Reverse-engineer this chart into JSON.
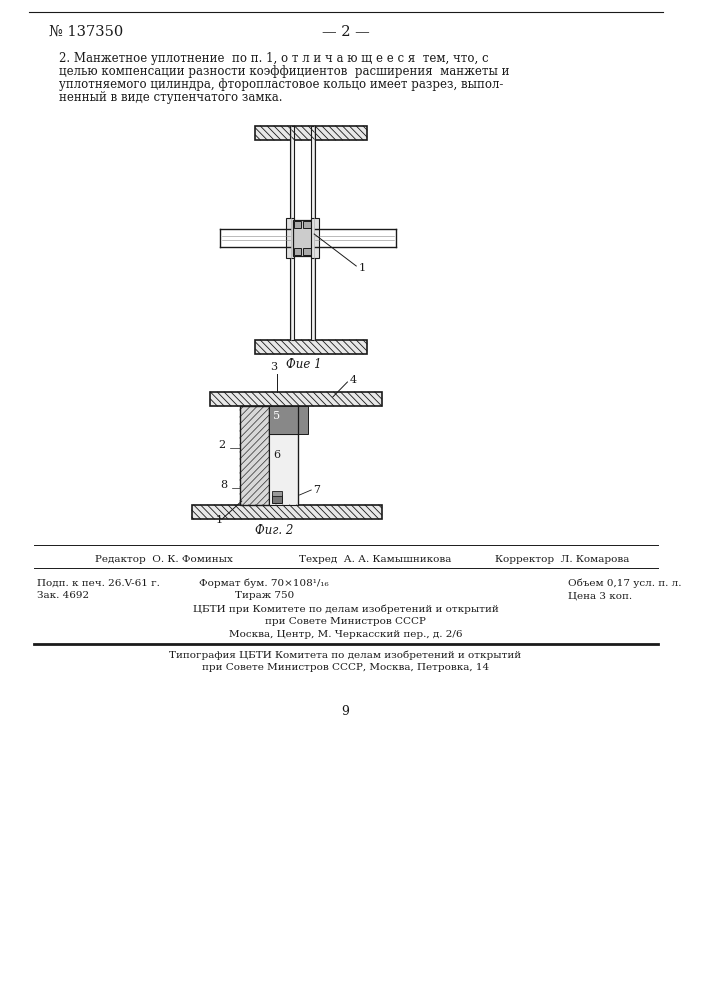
{
  "page_width": 7.07,
  "page_height": 10.0,
  "bg_color": "#ffffff",
  "patent_number": "№ 137350",
  "page_number": "— 2 —",
  "paragraph_text": "2. Манжетное уплотнение  по п. 1, о т л и ч а ю щ е е с я  тем, что, с",
  "paragraph_line2": "целью компенсации разности коэффициентов  расширения  манжеты и",
  "paragraph_line3": "уплотняемого цилиндра, фторопластовое кольцо имеет разрез, выпол-",
  "paragraph_line4": "ненный в виде ступенчатого замка.",
  "fig1_caption": "Фие 1",
  "fig2_caption": "Фиг. 2",
  "footer_editor": "Редактор  О. К. Фоминых",
  "footer_techred": "Техред  А. А. Камышникова",
  "footer_corrector": "Корректор  Л. Комарова",
  "footer_podp": "Подп. к печ. 26.V-61 г.",
  "footer_format": "Формат бум. 70×108¹/₁₆",
  "footer_objem": "Объем 0,17 усл. п. л.",
  "footer_zak": "Зак. 4692",
  "footer_tirazh": "Тираж 750",
  "footer_cena": "Цена 3 коп.",
  "footer_cbti1": "ЦБТИ при Комитете по делам изобретений и открытий",
  "footer_cbti2": "при Совете Министров СССР",
  "footer_cbti3": "Москва, Центр, М. Черкасский пер., д. 2/6",
  "footer_tip1": "Типография ЦБТИ Комитета по делам изобретений и открытий",
  "footer_tip2": "при Совете Министров СССР, Москва, Петровка, 14",
  "page_num_bottom": "9",
  "line_color": "#1a1a1a"
}
